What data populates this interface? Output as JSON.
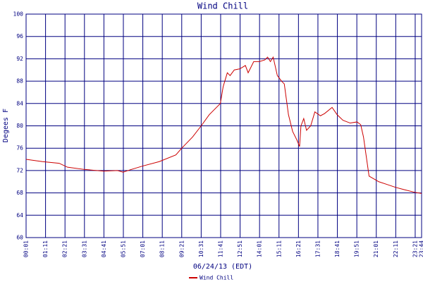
{
  "chart_data": {
    "type": "line",
    "title": "Wind Chill",
    "ylabel": "Degees F",
    "xlabel": "06/24/13 (EDT)",
    "x": [
      1,
      60,
      120,
      150,
      210,
      280,
      330,
      350,
      380,
      420,
      480,
      540,
      561,
      600,
      631,
      660,
      700,
      710,
      725,
      735,
      750,
      770,
      790,
      800,
      820,
      840,
      860,
      870,
      880,
      890,
      905,
      920,
      930,
      945,
      960,
      975,
      985,
      990,
      1000,
      1010,
      1025,
      1040,
      1060,
      1075,
      1102,
      1120,
      1141,
      1167,
      1192,
      1205,
      1215,
      1235,
      1270,
      1300,
      1330,
      1360,
      1400,
      1424
    ],
    "series": [
      {
        "name": "Wind Chill",
        "color": "#cc0000",
        "values": [
          74.0,
          73.6,
          73.3,
          72.6,
          72.2,
          71.9,
          72.0,
          71.7,
          72.2,
          72.8,
          73.6,
          74.8,
          76.0,
          78.0,
          80.0,
          82.0,
          84.0,
          87.0,
          89.5,
          89.0,
          90.0,
          90.2,
          90.8,
          89.5,
          91.5,
          91.5,
          91.8,
          92.3,
          91.5,
          92.3,
          89.0,
          88.0,
          87.5,
          82.0,
          79.0,
          77.5,
          76.3,
          80.0,
          81.3,
          79.2,
          80.0,
          82.5,
          81.8,
          82.2,
          83.3,
          82.0,
          81.0,
          80.5,
          80.7,
          80.2,
          78.0,
          71.0,
          70.0,
          69.5,
          69.0,
          68.6,
          68.1,
          67.9
        ]
      }
    ],
    "xlim": [
      1,
      1424
    ],
    "xticks": [
      {
        "value": 1,
        "label": "00:01"
      },
      {
        "value": 71,
        "label": "01:11"
      },
      {
        "value": 141,
        "label": "02:21"
      },
      {
        "value": 211,
        "label": "03:31"
      },
      {
        "value": 281,
        "label": "04:41"
      },
      {
        "value": 351,
        "label": "05:51"
      },
      {
        "value": 421,
        "label": "07:01"
      },
      {
        "value": 491,
        "label": "08:11"
      },
      {
        "value": 561,
        "label": "09:21"
      },
      {
        "value": 631,
        "label": "10:31"
      },
      {
        "value": 701,
        "label": "11:41"
      },
      {
        "value": 771,
        "label": "12:51"
      },
      {
        "value": 841,
        "label": "14:01"
      },
      {
        "value": 911,
        "label": "15:11"
      },
      {
        "value": 981,
        "label": "16:21"
      },
      {
        "value": 1051,
        "label": "17:31"
      },
      {
        "value": 1121,
        "label": "18:41"
      },
      {
        "value": 1191,
        "label": "19:51"
      },
      {
        "value": 1261,
        "label": "21:01"
      },
      {
        "value": 1331,
        "label": "22:11"
      },
      {
        "value": 1401,
        "label": "23:21"
      },
      {
        "value": 1424,
        "label": "23:44"
      }
    ],
    "ylim": [
      60,
      100
    ],
    "yticks": [
      60,
      64,
      68,
      72,
      76,
      80,
      84,
      88,
      92,
      96,
      100
    ],
    "grid": true,
    "grid_color": "#000080",
    "legend": "bottom"
  }
}
